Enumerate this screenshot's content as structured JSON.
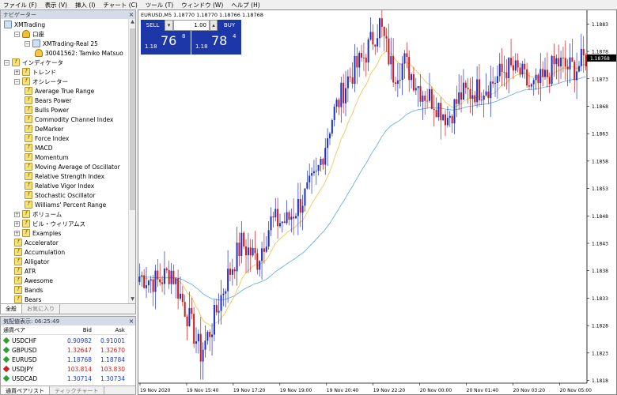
{
  "menu": [
    "ファイル (F)",
    "表示 (V)",
    "挿入 (I)",
    "チャート (C)",
    "ツール (T)",
    "ウィンドウ (W)",
    "ヘルプ (H)"
  ],
  "navigator": {
    "title": "ナビゲーター",
    "close": "×",
    "tree": [
      {
        "label": "XMTrading",
        "icon": "computer-icon",
        "indent": 0,
        "pm": ""
      },
      {
        "label": "口座",
        "icon": "accounts-icon",
        "indent": 1,
        "pm": "−"
      },
      {
        "label": "XMTrading-Real 25",
        "icon": "server-icon",
        "indent": 2,
        "pm": "−"
      },
      {
        "label": "30041562: Tamiko Matsuo",
        "icon": "user-icon",
        "indent": 3,
        "pm": ""
      },
      {
        "label": "インディケータ",
        "icon": "indicator-folder-icon",
        "indent": 0,
        "pm": "−"
      },
      {
        "label": "トレンド",
        "icon": "indicator-folder-icon",
        "indent": 1,
        "pm": "+"
      },
      {
        "label": "オシレーター",
        "icon": "indicator-folder-icon",
        "indent": 1,
        "pm": "−"
      },
      {
        "label": "Average True Range",
        "icon": "indicator-icon",
        "indent": 2,
        "pm": ""
      },
      {
        "label": "Bears Power",
        "icon": "indicator-icon",
        "indent": 2,
        "pm": ""
      },
      {
        "label": "Bulls Power",
        "icon": "indicator-icon",
        "indent": 2,
        "pm": ""
      },
      {
        "label": "Commodity Channel Index",
        "icon": "indicator-icon",
        "indent": 2,
        "pm": ""
      },
      {
        "label": "DeMarker",
        "icon": "indicator-icon",
        "indent": 2,
        "pm": ""
      },
      {
        "label": "Force Index",
        "icon": "indicator-icon",
        "indent": 2,
        "pm": ""
      },
      {
        "label": "MACD",
        "icon": "indicator-icon",
        "indent": 2,
        "pm": ""
      },
      {
        "label": "Momentum",
        "icon": "indicator-icon",
        "indent": 2,
        "pm": ""
      },
      {
        "label": "Moving Average of Oscillator",
        "icon": "indicator-icon",
        "indent": 2,
        "pm": ""
      },
      {
        "label": "Relative Strength Index",
        "icon": "indicator-icon",
        "indent": 2,
        "pm": ""
      },
      {
        "label": "Relative Vigor Index",
        "icon": "indicator-icon",
        "indent": 2,
        "pm": ""
      },
      {
        "label": "Stochastic Oscillator",
        "icon": "indicator-icon",
        "indent": 2,
        "pm": ""
      },
      {
        "label": "Williams' Percent Range",
        "icon": "indicator-icon",
        "indent": 2,
        "pm": ""
      },
      {
        "label": "ボリューム",
        "icon": "indicator-folder-icon",
        "indent": 1,
        "pm": "+"
      },
      {
        "label": "ビル・ウィリアムス",
        "icon": "indicator-folder-icon",
        "indent": 1,
        "pm": "+"
      },
      {
        "label": "Examples",
        "icon": "indicator-folder-icon",
        "indent": 1,
        "pm": "+"
      },
      {
        "label": "Accelerator",
        "icon": "indicator-icon",
        "indent": 1,
        "pm": ""
      },
      {
        "label": "Accumulation",
        "icon": "indicator-icon",
        "indent": 1,
        "pm": ""
      },
      {
        "label": "Alligator",
        "icon": "indicator-icon",
        "indent": 1,
        "pm": ""
      },
      {
        "label": "ATR",
        "icon": "indicator-icon",
        "indent": 1,
        "pm": ""
      },
      {
        "label": "Awesome",
        "icon": "indicator-icon",
        "indent": 1,
        "pm": ""
      },
      {
        "label": "Bands",
        "icon": "indicator-icon",
        "indent": 1,
        "pm": ""
      },
      {
        "label": "Bears",
        "icon": "indicator-icon",
        "indent": 1,
        "pm": ""
      }
    ],
    "tabs": [
      "全般",
      "お気に入り"
    ]
  },
  "market_watch": {
    "title": "気配値表示: 06:25:49",
    "columns": [
      "通貨ペア",
      "Bid",
      "Ask"
    ],
    "rows": [
      {
        "symbol": "USDCHF",
        "bid": "0.90982",
        "ask": "0.91001",
        "color": "#1f3fc0",
        "dir": "#2e9e2e"
      },
      {
        "symbol": "GBPUSD",
        "bid": "1.32647",
        "ask": "1.32670",
        "color": "#d02020",
        "dir": "#2e9e2e"
      },
      {
        "symbol": "EURUSD",
        "bid": "1.18768",
        "ask": "1.18784",
        "color": "#1f3fc0",
        "dir": "#2e9e2e"
      },
      {
        "symbol": "USDJPY",
        "bid": "103.814",
        "ask": "103.830",
        "color": "#d02020",
        "dir": "#d02020"
      },
      {
        "symbol": "USDCAD",
        "bid": "1.30714",
        "ask": "1.30734",
        "color": "#1f3fc0",
        "dir": "#2e9e2e"
      }
    ],
    "tabs": [
      "通貨ペアリスト",
      "ティックチャート"
    ]
  },
  "chart": {
    "title": "EURUSD,M5  1.18770 1.18770 1.18766 1.18768",
    "trade": {
      "sell": "SELL",
      "buy": "BUY",
      "volume": "1.00",
      "sell_small": "1.18",
      "sell_big": "76",
      "sell_sup": "8",
      "buy_small": "1.18",
      "buy_big": "78",
      "buy_sup": "4"
    },
    "current_price": "1.18768",
    "colors": {
      "bull": "#1b2fd0",
      "bear": "#d01818",
      "ma_fast": "#f0c040",
      "ma_slow": "#58a8e8"
    }
  },
  "chart_data": {
    "type": "candlestick",
    "symbol": "EURUSD",
    "timeframe": "M5",
    "x_ticks": [
      "19 Nov 2020",
      "19 Nov 15:40",
      "19 Nov 17:20",
      "19 Nov 19:00",
      "19 Nov 20:40",
      "19 Nov 22:20",
      "20 Nov 00:00",
      "20 Nov 01:40",
      "20 Nov 03:20",
      "20 Nov 05:00"
    ],
    "y_ticks": [
      "1.1883",
      "1.1878",
      "1.1873",
      "1.1868",
      "1.1863",
      "1.1858",
      "1.1853",
      "1.1848",
      "1.1843",
      "1.1838",
      "1.1833",
      "1.1828",
      "1.1823",
      "1.1818"
    ],
    "ylim": [
      1.18175,
      1.18855
    ],
    "anchors": [
      [
        0,
        1.1837
      ],
      [
        8,
        1.1836
      ],
      [
        14,
        1.1838
      ],
      [
        22,
        1.1829
      ],
      [
        27,
        1.1823
      ],
      [
        32,
        1.1828
      ],
      [
        38,
        1.1836
      ],
      [
        45,
        1.1843
      ],
      [
        52,
        1.184
      ],
      [
        58,
        1.1847
      ],
      [
        65,
        1.1847
      ],
      [
        72,
        1.1851
      ],
      [
        78,
        1.1855
      ],
      [
        85,
        1.1866
      ],
      [
        92,
        1.1873
      ],
      [
        99,
        1.1877
      ],
      [
        106,
        1.1883
      ],
      [
        112,
        1.1874
      ],
      [
        117,
        1.1876
      ],
      [
        124,
        1.1871
      ],
      [
        130,
        1.1869
      ],
      [
        136,
        1.1866
      ],
      [
        142,
        1.187
      ],
      [
        149,
        1.1871
      ],
      [
        155,
        1.1872
      ],
      [
        162,
        1.1875
      ],
      [
        168,
        1.1874
      ],
      [
        173,
        1.1871
      ],
      [
        179,
        1.1873
      ],
      [
        184,
        1.1876
      ],
      [
        189,
        1.1875
      ],
      [
        193,
        1.1875
      ],
      [
        197,
        1.1877
      ]
    ]
  }
}
